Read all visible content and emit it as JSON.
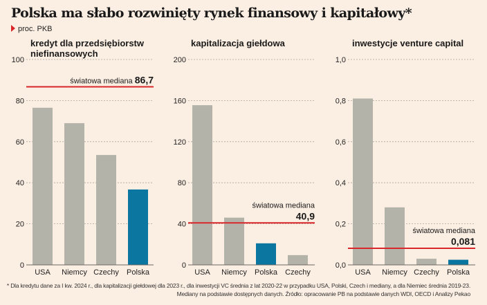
{
  "title": "Polska ma słabo rozwinięty rynek finansowy i kapitałowy*",
  "subtitle": "proc. PKB",
  "colors": {
    "bar": "#b4b3aa",
    "highlight": "#0b76a0",
    "median": "#d8262b",
    "grid": "#a9a39c",
    "background": "#fbeee2"
  },
  "chart_data": [
    {
      "type": "bar",
      "title": "kredyt dla przedsiębiorstw niefinansowych",
      "title_lines": [
        "kredyt dla przedsiębiorstw",
        "niefinansowych"
      ],
      "categories": [
        "USA",
        "Niemcy",
        "Czechy",
        "Polska"
      ],
      "values": [
        76.5,
        69.0,
        53.5,
        36.7
      ],
      "highlight": "Polska",
      "ylim": [
        0,
        100
      ],
      "yticks": [
        0,
        20,
        40,
        60,
        80,
        100
      ],
      "ytick_labels": [
        "0",
        "20",
        "40",
        "60",
        "80",
        "100"
      ],
      "median": {
        "value": 86.7,
        "label": "światowa mediana",
        "value_label": "86,7",
        "layout": "inline"
      },
      "grid": true
    },
    {
      "type": "bar",
      "title": "kapitalizacja giełdowa",
      "title_lines": [
        "kapitalizacja giełdowa"
      ],
      "categories": [
        "USA",
        "Niemcy",
        "Polska",
        "Czechy"
      ],
      "values": [
        155.5,
        46.0,
        21.0,
        9.5
      ],
      "highlight": "Polska",
      "ylim": [
        0,
        200
      ],
      "yticks": [
        0,
        40,
        80,
        120,
        160,
        200
      ],
      "ytick_labels": [
        "0",
        "40",
        "80",
        "120",
        "160",
        "200"
      ],
      "median": {
        "value": 40.9,
        "label": "światowa mediana",
        "value_label": "40,9",
        "layout": "stacked"
      },
      "grid": true
    },
    {
      "type": "bar",
      "title": "inwestycje venture capital",
      "title_lines": [
        "inwestycje venture capital"
      ],
      "categories": [
        "USA",
        "Niemcy",
        "Czechy",
        "Polska"
      ],
      "values": [
        0.81,
        0.28,
        0.03,
        0.025
      ],
      "highlight": "Polska",
      "ylim": [
        0,
        1.0
      ],
      "yticks": [
        0,
        0.2,
        0.4,
        0.6,
        0.8,
        1.0
      ],
      "ytick_labels": [
        "0,0",
        "0,2",
        "0,4",
        "0,6",
        "0,8",
        "1,0"
      ],
      "median": {
        "value": 0.081,
        "label": "światowa mediana",
        "value_label": "0,081",
        "layout": "stacked"
      },
      "grid": true
    }
  ],
  "footnote": [
    "* Dla kredytu dane za I kw. 2024 r., dla kapitalizacji giełdowej dla 2023 r., dla inwestycji VC średnia z lat 2020-22 w przypadku USA, Polski, Czech i mediany, a dla Niemiec średnia 2019-23.",
    "Mediany na podstawie dostępnych danych. Źródło: opracowanie PB na podstawie danych WDI, OECD i Analizy Pekao"
  ]
}
